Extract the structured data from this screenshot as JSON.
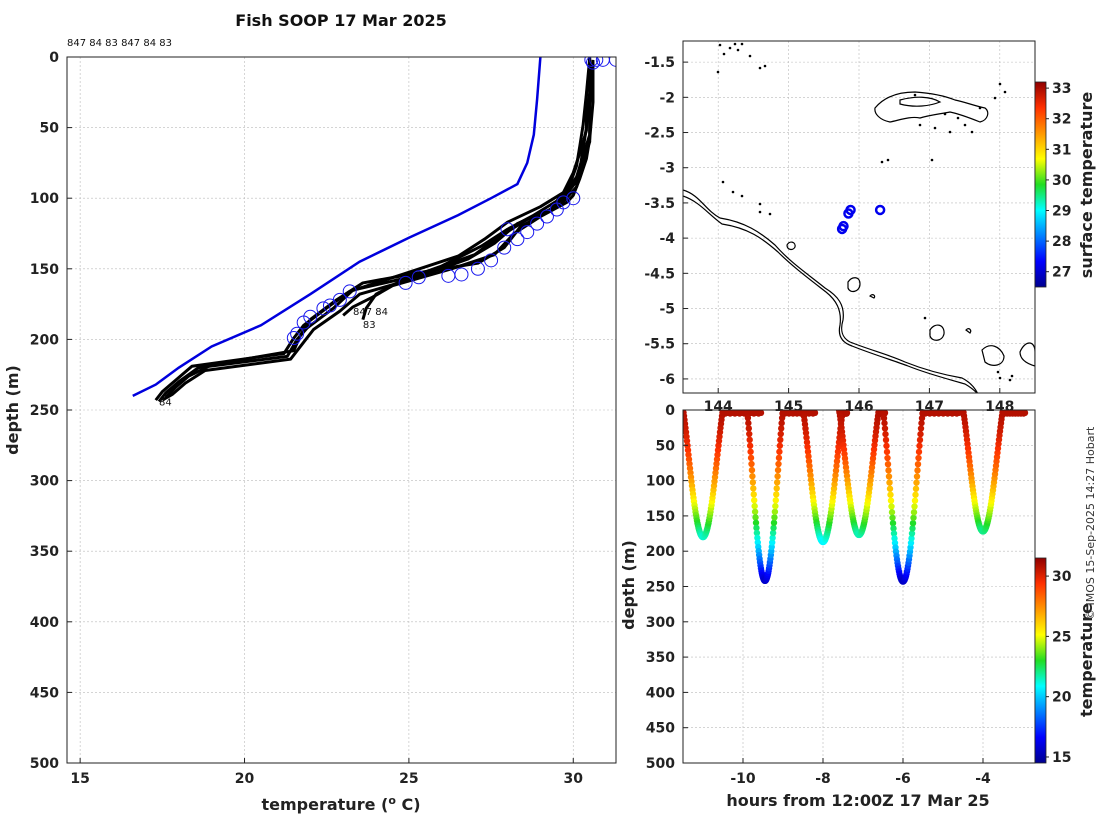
{
  "chart_data": [
    {
      "type": "line",
      "title": "Fish SOOP 17 Mar 2025",
      "xlabel": "temperature (",
      "xlabel_sup": "o",
      "xlabel_tail": " C)",
      "ylabel": "depth (m)",
      "xlim": [
        14.6,
        31.3
      ],
      "ylim": [
        500,
        0
      ],
      "xticks": [
        15,
        20,
        25,
        30
      ],
      "yticks": [
        0,
        50,
        100,
        150,
        200,
        250,
        300,
        350,
        400,
        450,
        500
      ],
      "top_annotation": "847 84 83 847 84 83",
      "profile_labels": [
        {
          "text": "84",
          "x": 17.4,
          "y": 244
        },
        {
          "text": "847 84",
          "x": 23.3,
          "y": 180
        },
        {
          "text": "83",
          "x": 23.6,
          "y": 189
        }
      ],
      "climatology": {
        "name": "climatology",
        "color": "#0000dd",
        "points": [
          [
            29.0,
            0
          ],
          [
            28.9,
            30
          ],
          [
            28.8,
            55
          ],
          [
            28.6,
            75
          ],
          [
            28.3,
            90
          ],
          [
            27.5,
            100
          ],
          [
            26.5,
            112
          ],
          [
            25.0,
            128
          ],
          [
            23.5,
            145
          ],
          [
            22.0,
            168
          ],
          [
            20.5,
            190
          ],
          [
            19.0,
            205
          ],
          [
            18.0,
            220
          ],
          [
            17.3,
            232
          ],
          [
            16.6,
            240
          ]
        ]
      },
      "series": [
        {
          "name": "profile 1",
          "color": "#000000",
          "points": [
            [
              30.5,
              0
            ],
            [
              30.5,
              25
            ],
            [
              30.4,
              50
            ],
            [
              30.3,
              65
            ],
            [
              30.2,
              80
            ],
            [
              30.1,
              92
            ],
            [
              29.6,
              105
            ],
            [
              28.6,
              115
            ],
            [
              27.7,
              128
            ],
            [
              27.0,
              140
            ],
            [
              25.2,
              155
            ],
            [
              23.3,
              165
            ],
            [
              22.7,
              178
            ],
            [
              21.9,
              192
            ],
            [
              21.6,
              200
            ],
            [
              21.3,
              212
            ],
            [
              18.6,
              220
            ],
            [
              18.0,
              230
            ],
            [
              17.6,
              238
            ],
            [
              17.4,
              244
            ]
          ]
        },
        {
          "name": "profile 2",
          "color": "#000000",
          "points": [
            [
              30.6,
              2
            ],
            [
              30.5,
              30
            ],
            [
              30.5,
              55
            ],
            [
              30.3,
              70
            ],
            [
              30.1,
              85
            ],
            [
              29.8,
              95
            ],
            [
              29.3,
              108
            ],
            [
              28.3,
              118
            ],
            [
              27.6,
              132
            ],
            [
              26.8,
              143
            ],
            [
              25.0,
              158
            ],
            [
              23.5,
              168
            ],
            [
              22.9,
              180
            ],
            [
              22.1,
              193
            ],
            [
              21.8,
              202
            ],
            [
              21.4,
              214
            ],
            [
              18.8,
              222
            ],
            [
              18.2,
              231
            ],
            [
              17.8,
              239
            ],
            [
              17.5,
              243
            ]
          ]
        },
        {
          "name": "profile 3",
          "color": "#000000",
          "points": [
            [
              30.5,
              4
            ],
            [
              30.4,
              28
            ],
            [
              30.4,
              52
            ],
            [
              30.2,
              68
            ],
            [
              30.0,
              82
            ],
            [
              29.7,
              96
            ],
            [
              29.0,
              106
            ],
            [
              28.0,
              117
            ],
            [
              27.3,
              129
            ],
            [
              26.5,
              141
            ],
            [
              24.8,
              154
            ],
            [
              23.2,
              166
            ],
            [
              22.6,
              176
            ],
            [
              21.8,
              190
            ],
            [
              21.5,
              199
            ],
            [
              21.2,
              210
            ],
            [
              18.4,
              219
            ],
            [
              17.9,
              229
            ],
            [
              17.5,
              237
            ],
            [
              17.3,
              243
            ]
          ]
        },
        {
          "name": "profile 4",
          "color": "#000000",
          "points": [
            [
              30.6,
              3
            ],
            [
              30.6,
              32
            ],
            [
              30.5,
              58
            ],
            [
              30.4,
              72
            ],
            [
              30.2,
              86
            ],
            [
              30.0,
              98
            ],
            [
              29.8,
              103
            ],
            [
              29.0,
              113
            ],
            [
              28.2,
              125
            ],
            [
              27.6,
              140
            ],
            [
              26.3,
              150
            ],
            [
              24.5,
              162
            ],
            [
              23.9,
              170
            ],
            [
              23.3,
              177
            ],
            [
              23.0,
              183
            ]
          ]
        },
        {
          "name": "profile 5",
          "color": "#000000",
          "points": [
            [
              30.5,
              1
            ],
            [
              30.4,
              26
            ],
            [
              30.3,
              48
            ],
            [
              30.2,
              63
            ],
            [
              30.1,
              77
            ],
            [
              29.9,
              90
            ],
            [
              29.5,
              102
            ],
            [
              28.8,
              112
            ],
            [
              28.0,
              122
            ],
            [
              27.2,
              134
            ],
            [
              26.0,
              148
            ],
            [
              24.8,
              158
            ],
            [
              24.0,
              168
            ],
            [
              23.7,
              178
            ],
            [
              23.6,
              186
            ]
          ]
        },
        {
          "name": "profile 6",
          "color": "#000000",
          "points": [
            [
              30.6,
              5
            ],
            [
              30.5,
              34
            ],
            [
              30.5,
              60
            ],
            [
              30.3,
              74
            ],
            [
              30.1,
              88
            ],
            [
              29.7,
              100
            ],
            [
              29.2,
              110
            ],
            [
              28.4,
              120
            ],
            [
              27.9,
              135
            ],
            [
              27.1,
              146
            ],
            [
              25.5,
              152
            ],
            [
              23.6,
              160
            ],
            [
              22.8,
              172
            ],
            [
              22.0,
              186
            ],
            [
              21.7,
              197
            ],
            [
              21.5,
              208
            ],
            [
              19.0,
              218
            ],
            [
              18.3,
              226
            ],
            [
              17.9,
              234
            ],
            [
              17.6,
              241
            ]
          ]
        }
      ],
      "surface_markers": [
        [
          30.55,
          2
        ],
        [
          30.7,
          2
        ],
        [
          30.9,
          2
        ],
        [
          31.3,
          2
        ],
        [
          30.6,
          4
        ]
      ],
      "bottom_markers": [
        [
          29.5,
          108
        ],
        [
          29.2,
          113
        ],
        [
          28.9,
          118
        ],
        [
          28.6,
          124
        ],
        [
          28.3,
          129
        ],
        [
          27.9,
          135
        ],
        [
          27.5,
          144
        ],
        [
          27.1,
          150
        ],
        [
          26.6,
          154
        ],
        [
          26.2,
          155
        ],
        [
          25.3,
          156
        ],
        [
          24.9,
          160
        ],
        [
          23.2,
          166
        ],
        [
          22.9,
          172
        ],
        [
          22.6,
          176
        ],
        [
          22.4,
          178
        ],
        [
          22.0,
          184
        ],
        [
          21.8,
          188
        ],
        [
          21.6,
          196
        ],
        [
          21.5,
          199
        ],
        [
          29.7,
          103
        ],
        [
          30.0,
          100
        ],
        [
          28.0,
          122
        ]
      ]
    },
    {
      "type": "scatter",
      "title": "",
      "xlim": [
        143.5,
        148.5
      ],
      "ylim": [
        -6.2,
        -1.2
      ],
      "xticks": [
        144,
        145,
        146,
        147,
        148
      ],
      "yticks": [
        -1.5,
        -2,
        -2.5,
        -3,
        -3.5,
        -4,
        -4.5,
        -5,
        -5.5,
        -6
      ],
      "ytick_labels": [
        "-1.5",
        "-2",
        "-2.5",
        "-3",
        "-3.5",
        "-4",
        "-4.5",
        "-5",
        "-5.5",
        "-6"
      ],
      "stations": [
        [
          145.88,
          -3.6
        ],
        [
          145.85,
          -3.65
        ],
        [
          145.78,
          -3.83
        ],
        [
          145.76,
          -3.87
        ],
        [
          146.3,
          -3.6
        ]
      ],
      "station_color": "#0000ee",
      "colorbar": {
        "label": "surface temperature",
        "min": 26.5,
        "max": 33.2,
        "ticks": [
          27,
          28,
          29,
          30,
          31,
          32,
          33
        ]
      }
    },
    {
      "type": "scatter",
      "xlabel": "hours from 12:00Z 17 Mar 25",
      "ylabel": "depth (m)",
      "xlim": [
        -11.5,
        -2.7
      ],
      "ylim": [
        500,
        0
      ],
      "xticks": [
        -10,
        -8,
        -6,
        -4
      ],
      "yticks": [
        0,
        50,
        100,
        150,
        200,
        250,
        300,
        350,
        400,
        450,
        500
      ],
      "casts": [
        {
          "t0": -11.5,
          "tb": -11.0,
          "t1": -10.5,
          "max_depth": 180,
          "near_surface_end": -9.55
        },
        {
          "t0": -9.9,
          "tb": -9.45,
          "t1": -9.0,
          "max_depth": 242,
          "near_surface_end": -8.2
        },
        {
          "t0": -8.5,
          "tb": -8.0,
          "t1": -7.5,
          "max_depth": 187,
          "near_surface_end": -7.4
        },
        {
          "t0": -7.6,
          "tb": -7.1,
          "t1": -6.6,
          "max_depth": 177,
          "near_surface_end": -6.45
        },
        {
          "t0": -6.5,
          "tb": -6.0,
          "t1": -5.5,
          "max_depth": 243,
          "near_surface_end": -4.6
        },
        {
          "t0": -4.5,
          "tb": -4.0,
          "t1": -3.5,
          "max_depth": 172,
          "near_surface_end": -2.95
        }
      ],
      "colorbar": {
        "label": "temperature",
        "min": 14.5,
        "max": 31.5,
        "ticks": [
          15,
          20,
          25,
          30
        ]
      }
    }
  ],
  "watermark": "© IMOS 15-Sep-2025 14:27 Hobart"
}
